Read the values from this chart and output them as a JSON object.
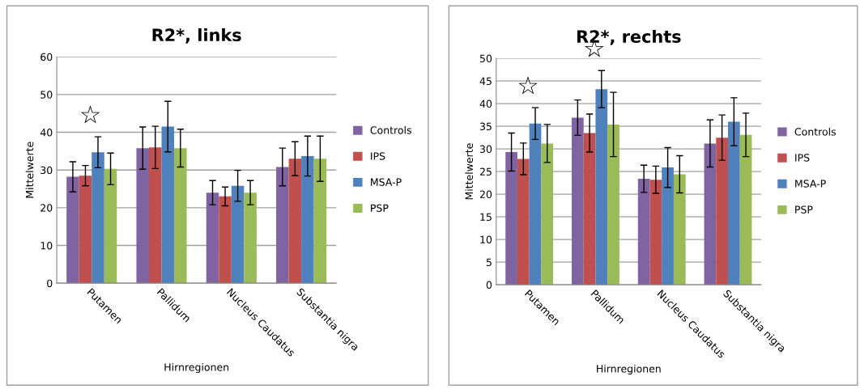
{
  "chart_data": [
    {
      "type": "bar",
      "title": "R2*, links",
      "xlabel": "Hirnregionen",
      "ylabel": "Mittelwerte",
      "categories": [
        "Putamen",
        "Pallidum",
        "Nucleus Caudatus",
        "Substantia nigra"
      ],
      "ylim": [
        0,
        60
      ],
      "yticks": [
        0,
        10,
        20,
        30,
        40,
        50,
        60
      ],
      "grid": "y",
      "legend": "right",
      "series": [
        {
          "name": "Controls",
          "color": "#8064a2",
          "values": [
            28.2,
            35.8,
            24.0,
            30.8
          ],
          "errors": [
            4.0,
            5.6,
            3.2,
            5.0
          ]
        },
        {
          "name": "IPS",
          "color": "#c0504d",
          "values": [
            28.5,
            36.0,
            23.0,
            33.0
          ],
          "errors": [
            2.7,
            5.6,
            2.5,
            4.5
          ]
        },
        {
          "name": "MSA-P",
          "color": "#4f81bd",
          "values": [
            34.7,
            41.5,
            25.8,
            33.7
          ],
          "errors": [
            4.1,
            6.7,
            4.1,
            5.3
          ]
        },
        {
          "name": "PSP",
          "color": "#9bbb59",
          "values": [
            30.3,
            35.8,
            24.0,
            33.0
          ],
          "errors": [
            4.2,
            5.0,
            3.2,
            6.0
          ]
        }
      ],
      "annotations": [
        "☆"
      ]
    },
    {
      "type": "bar",
      "title": "R2*, rechts",
      "xlabel": "Hirnregionen",
      "ylabel": "Mittelwerte",
      "categories": [
        "Putamen",
        "Pallidum",
        "Nucleus Caudatus",
        "Substantia nigra"
      ],
      "ylim": [
        0,
        50
      ],
      "yticks": [
        0,
        5,
        10,
        15,
        20,
        25,
        30,
        35,
        40,
        45,
        50
      ],
      "grid": "y",
      "legend": "right",
      "series": [
        {
          "name": "Controls",
          "color": "#8064a2",
          "values": [
            29.3,
            36.9,
            23.4,
            31.2
          ],
          "errors": [
            4.2,
            3.9,
            3.0,
            5.2
          ]
        },
        {
          "name": "IPS",
          "color": "#c0504d",
          "values": [
            27.8,
            33.5,
            23.2,
            32.5
          ],
          "errors": [
            3.5,
            4.2,
            3.0,
            5.0
          ]
        },
        {
          "name": "MSA-P",
          "color": "#4f81bd",
          "values": [
            35.6,
            43.2,
            25.9,
            36.0
          ],
          "errors": [
            3.5,
            4.1,
            4.4,
            5.3
          ]
        },
        {
          "name": "PSP",
          "color": "#9bbb59",
          "values": [
            31.2,
            35.4,
            24.4,
            33.1
          ],
          "errors": [
            4.2,
            7.1,
            4.1,
            4.8
          ]
        }
      ],
      "annotations": [
        "☆",
        "☆"
      ]
    }
  ]
}
